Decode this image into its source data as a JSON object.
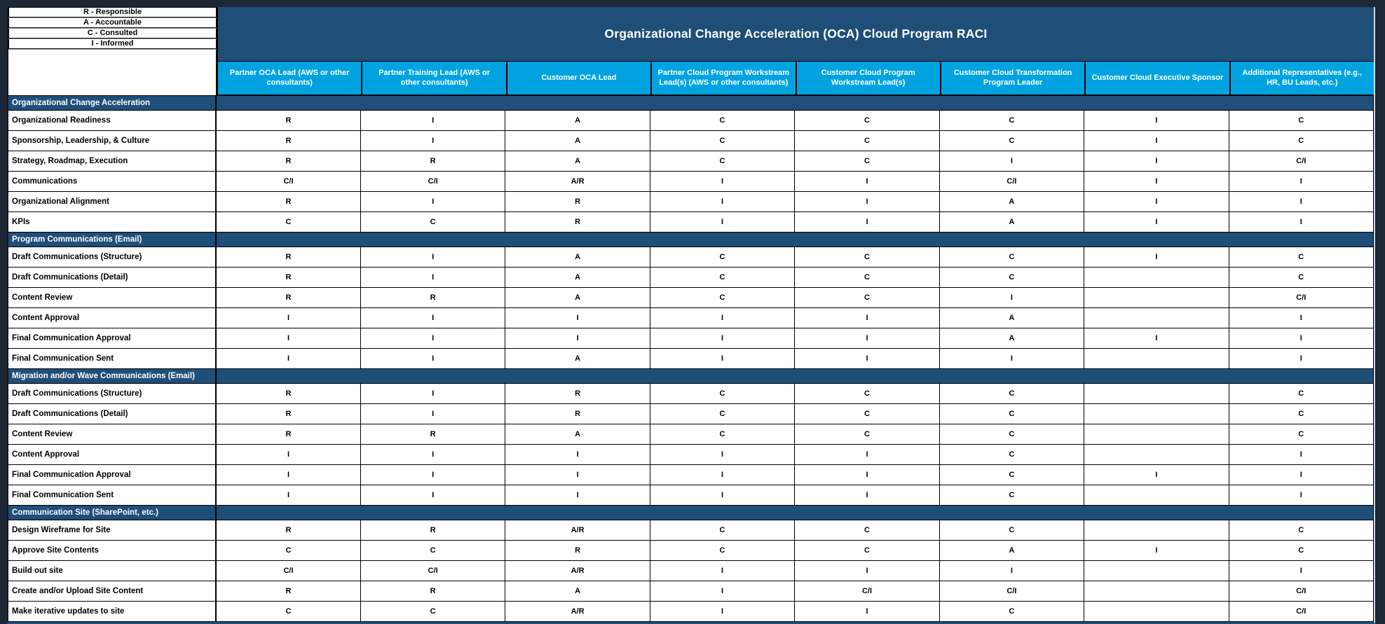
{
  "title": "Organizational Change Acceleration (OCA) Cloud Program RACI",
  "legend": {
    "items": [
      "R - Responsible",
      "A - Accountable",
      "C - Consulted",
      "I - Informed"
    ]
  },
  "columns": [
    "Partner OCA Lead (AWS or other consultants)",
    "Partner Training Lead (AWS or other consultants)",
    "Customer OCA  Lead",
    "Partner Cloud Program Workstream Lead(s) (AWS or other consultants)",
    "Customer Cloud Program Workstream Lead(s)",
    "Customer Cloud Transformation Program Leader",
    "Customer Cloud Executive Sponsor",
    "Additional Representatives (e.g., HR, BU Leads, etc.)"
  ],
  "colors": {
    "band_blue": "#1F4E79",
    "header_cyan": "#00A3E0",
    "page_background": "#1D2735",
    "cell_white": "#FFFFFF",
    "text_black": "#000000",
    "text_white": "#FFFFFF"
  },
  "sections": [
    {
      "name": "Organizational Change Acceleration",
      "rows": [
        {
          "task": "Organizational Readiness",
          "values": [
            "R",
            "I",
            "A",
            "C",
            "C",
            "C",
            "I",
            "C"
          ]
        },
        {
          "task": "Sponsorship, Leadership, & Culture",
          "values": [
            "R",
            "I",
            "A",
            "C",
            "C",
            "C",
            "I",
            "C"
          ]
        },
        {
          "task": "Strategy, Roadmap, Execution",
          "values": [
            "R",
            "R",
            "A",
            "C",
            "C",
            "I",
            "I",
            "C/I"
          ]
        },
        {
          "task": "Communications",
          "values": [
            "C/I",
            "C/I",
            "A/R",
            "I",
            "I",
            "C/I",
            "I",
            "I"
          ]
        },
        {
          "task": "Organizational Alignment",
          "values": [
            "R",
            "I",
            "R",
            "I",
            "I",
            "A",
            "I",
            "I"
          ]
        },
        {
          "task": "KPIs",
          "values": [
            "C",
            "C",
            "R",
            "I",
            "I",
            "A",
            "I",
            "I"
          ]
        }
      ]
    },
    {
      "name": "Program Communications (Email)",
      "rows": [
        {
          "task": "Draft Communications (Structure)",
          "values": [
            "R",
            "I",
            "A",
            "C",
            "C",
            "C",
            "I",
            "C"
          ]
        },
        {
          "task": "Draft Communications (Detail)",
          "values": [
            "R",
            "I",
            "A",
            "C",
            "C",
            "C",
            "",
            "C"
          ]
        },
        {
          "task": "Content Review",
          "values": [
            "R",
            "R",
            "A",
            "C",
            "C",
            "I",
            "",
            "C/I"
          ]
        },
        {
          "task": "Content Approval",
          "values": [
            "I",
            "I",
            "I",
            "I",
            "I",
            "A",
            "",
            "I"
          ]
        },
        {
          "task": "Final Communication Approval",
          "values": [
            "I",
            "I",
            "I",
            "I",
            "I",
            "A",
            "I",
            "I"
          ]
        },
        {
          "task": "Final Communication Sent",
          "values": [
            "I",
            "I",
            "A",
            "I",
            "I",
            "I",
            "",
            "I"
          ]
        }
      ]
    },
    {
      "name": "Migration and/or Wave Communications (Email)",
      "rows": [
        {
          "task": "Draft Communications (Structure)",
          "values": [
            "R",
            "I",
            "R",
            "C",
            "C",
            "C",
            "",
            "C"
          ]
        },
        {
          "task": "Draft Communications (Detail)",
          "values": [
            "R",
            "I",
            "R",
            "C",
            "C",
            "C",
            "",
            "C"
          ]
        },
        {
          "task": "Content Review",
          "values": [
            "R",
            "R",
            "A",
            "C",
            "C",
            "C",
            "",
            "C"
          ]
        },
        {
          "task": "Content Approval",
          "values": [
            "I",
            "I",
            "I",
            "I",
            "I",
            "C",
            "",
            "I"
          ]
        },
        {
          "task": "Final Communication Approval",
          "values": [
            "I",
            "I",
            "I",
            "I",
            "I",
            "C",
            "I",
            "I"
          ]
        },
        {
          "task": "Final Communication Sent",
          "values": [
            "I",
            "I",
            "I",
            "I",
            "I",
            "C",
            "",
            "I"
          ]
        }
      ]
    },
    {
      "name": "Communication Site (SharePoint, etc.)",
      "rows": [
        {
          "task": "Design Wireframe for Site",
          "values": [
            "R",
            "R",
            "A/R",
            "C",
            "C",
            "C",
            "",
            "C"
          ]
        },
        {
          "task": "Approve Site Contents",
          "values": [
            "C",
            "C",
            "R",
            "C",
            "C",
            "A",
            "I",
            "C"
          ]
        },
        {
          "task": "Build out site",
          "values": [
            "C/I",
            "C/I",
            "A/R",
            "I",
            "I",
            "I",
            "",
            "I"
          ]
        },
        {
          "task": "Create and/or Upload Site Content",
          "values": [
            "R",
            "R",
            "A",
            "I",
            "C/I",
            "C/I",
            "",
            "C/I"
          ]
        },
        {
          "task": "Make iterative updates to site",
          "values": [
            "C",
            "C",
            "A/R",
            "I",
            "I",
            "C",
            "",
            "C/I"
          ]
        }
      ]
    }
  ]
}
